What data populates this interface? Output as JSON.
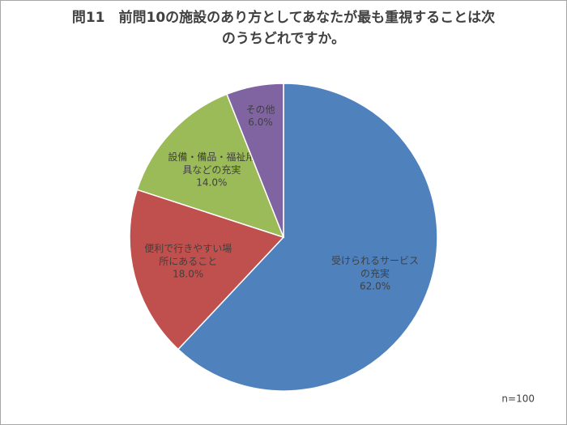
{
  "chart_data": {
    "type": "pie",
    "title": "問11　前問10の施設のあり方としてあなたが最も重視することは次のうちどれですか。",
    "categories": [
      "受けられるサービスの充実",
      "便利で行きやすい場所にあること",
      "設備・備品・福祉用具などの充実",
      "その他"
    ],
    "values": [
      62,
      18,
      14,
      6
    ],
    "value_labels": [
      "62.0%",
      "18.0%",
      "14.0%",
      "6.0%"
    ],
    "colors": [
      "#4f81bd",
      "#c0504d",
      "#9bbb59",
      "#8064a2"
    ],
    "annotation": "n=100"
  }
}
